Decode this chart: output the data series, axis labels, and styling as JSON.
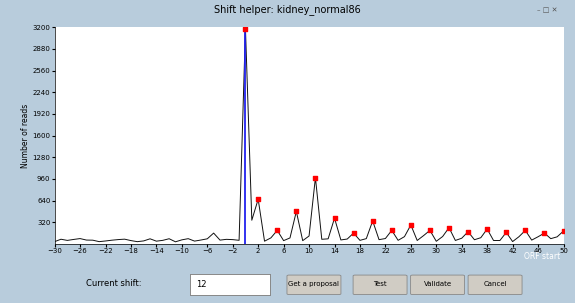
{
  "title": "Shift helper: kidney_normal86",
  "ylabel": "Number of reads",
  "xmin": -30,
  "xmax": 50,
  "ymin": 0,
  "ymax": 3200,
  "ytick_values": [
    320,
    640,
    960,
    1280,
    1600,
    1920,
    2240,
    2560,
    2880,
    3200
  ],
  "xticks": [
    -30,
    -26,
    -22,
    -18,
    -14,
    -10,
    -6,
    -2,
    2,
    6,
    10,
    14,
    18,
    22,
    26,
    30,
    34,
    38,
    42,
    46,
    50
  ],
  "vline_x": 0,
  "bg_color": "#b8ccdc",
  "plot_bg": "#ffffff",
  "line_color": "#111111",
  "vline_color": "#2222ee",
  "marker_color": "#ff0000",
  "orf_bar_color": "#1111bb",
  "orf_start_label": "ORF start",
  "current_shift_label": "Current shift:",
  "current_shift_val": "12",
  "buttons": [
    "Get a proposal",
    "Test",
    "Validate",
    "Cancel"
  ],
  "titlebar_color": "#c8d8e8",
  "spike_height": 3180,
  "peaks_x": [
    2,
    5,
    8,
    11,
    14,
    17,
    20,
    23,
    26,
    29,
    32,
    35,
    38,
    41,
    44,
    47,
    50
  ],
  "peaks_y": [
    660,
    200,
    480,
    980,
    380,
    160,
    340,
    200,
    280,
    200,
    240,
    180,
    220,
    170,
    200,
    160,
    190
  ]
}
